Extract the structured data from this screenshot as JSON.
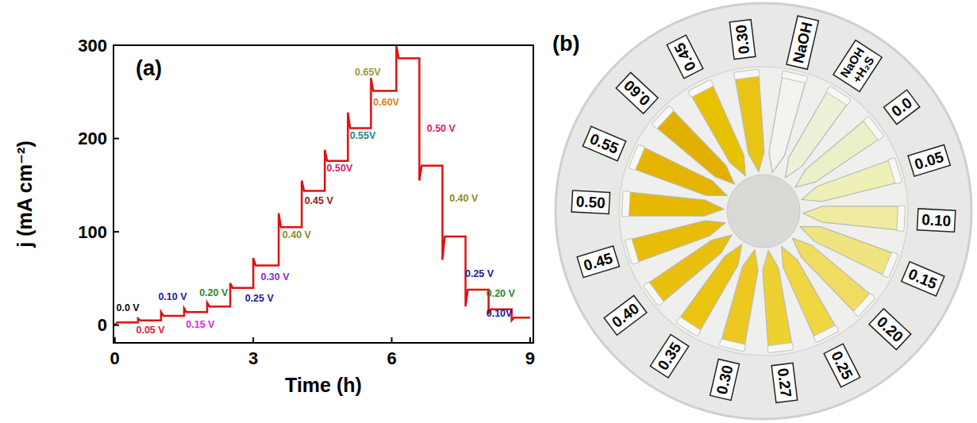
{
  "chart_data": {
    "type": "line",
    "panel_label": "(a)",
    "xlabel": "Time (h)",
    "ylabel": "j (mA cm⁻²)",
    "xlim": [
      -0.03,
      9.07
    ],
    "ylim": [
      -19,
      300
    ],
    "xticks": [
      0,
      3,
      6,
      9
    ],
    "yticks": [
      0,
      100,
      200,
      300
    ],
    "grid": false,
    "series": [
      {
        "color": "#e01010",
        "line_style": "solid",
        "x": [
          0,
          0.05,
          0.5,
          0.5,
          0.55,
          1.0,
          1.0,
          1.05,
          1.5,
          1.5,
          1.55,
          2.0,
          2.0,
          2.05,
          2.5,
          2.5,
          2.55,
          3.0,
          3.0,
          3.05,
          3.55,
          3.55,
          3.6,
          4.05,
          4.05,
          4.1,
          4.55,
          4.55,
          4.6,
          5.05,
          5.05,
          5.1,
          5.55,
          5.55,
          5.6,
          6.1,
          6.1,
          6.15,
          6.6,
          6.6,
          6.65,
          7.1,
          7.1,
          7.15,
          7.6,
          7.6,
          7.65,
          8.1,
          8.1,
          8.15,
          8.6,
          8.6,
          8.65,
          9.0
        ],
        "values": [
          0,
          3,
          3,
          7,
          5,
          5,
          14,
          10,
          10,
          18,
          14,
          14,
          24,
          20,
          20,
          45,
          40,
          40,
          72,
          64,
          64,
          120,
          105,
          105,
          155,
          144,
          144,
          188,
          176,
          176,
          228,
          211,
          211,
          265,
          251,
          251,
          300,
          286,
          286,
          155,
          171,
          171,
          70,
          95,
          95,
          20,
          38,
          38,
          12,
          17,
          17,
          5,
          8,
          8
        ]
      }
    ],
    "annotations": [
      {
        "text": "0.0 V",
        "x": 0.03,
        "y": 15,
        "color": "#111111"
      },
      {
        "text": "0.05 V",
        "x": 0.46,
        "y": -9,
        "color": "#e0203a"
      },
      {
        "text": "0.10 V",
        "x": 0.94,
        "y": 27,
        "color": "#1a1aa0"
      },
      {
        "text": "0.15 V",
        "x": 1.54,
        "y": -3,
        "color": "#e020e0"
      },
      {
        "text": "0.20 V",
        "x": 1.83,
        "y": 31,
        "color": "#2a8a2a"
      },
      {
        "text": "0.25 V",
        "x": 2.82,
        "y": 25,
        "color": "#1a1aa0"
      },
      {
        "text": "0.30 V",
        "x": 3.16,
        "y": 48,
        "color": "#8a2be2"
      },
      {
        "text": "0.40 V",
        "x": 3.63,
        "y": 93,
        "color": "#8a8a20"
      },
      {
        "text": "0.45 V",
        "x": 4.11,
        "y": 130,
        "color": "#8b1a1a"
      },
      {
        "text": "0.50V",
        "x": 4.59,
        "y": 165,
        "color": "#e0206a"
      },
      {
        "text": "0.55V",
        "x": 5.09,
        "y": 200,
        "color": "#1a8a8a"
      },
      {
        "text": "0.60V",
        "x": 5.6,
        "y": 235,
        "color": "#e08020"
      },
      {
        "text": "0.65V",
        "x": 5.2,
        "y": 268,
        "color": "#9a9a30"
      },
      {
        "text": "0.50 V",
        "x": 6.76,
        "y": 207,
        "color": "#e0206a"
      },
      {
        "text": "0.40 V",
        "x": 7.25,
        "y": 132,
        "color": "#8a8a20"
      },
      {
        "text": "0.25 V",
        "x": 7.59,
        "y": 52,
        "color": "#1a1aa0"
      },
      {
        "text": "0.20 V",
        "x": 8.05,
        "y": 30,
        "color": "#2a8a2a"
      },
      {
        "text": "0.10V",
        "x": 8.05,
        "y": 9,
        "color": "#1a1aa0"
      }
    ]
  },
  "vial_tray": {
    "panel_label": "(b)",
    "vials": [
      {
        "label": "0.45",
        "color": "#e8c200"
      },
      {
        "label": "0.30",
        "color": "#e8c414"
      },
      {
        "label": "NaOH",
        "color": "#f4f4ee"
      },
      {
        "label": "NaOH +H₂S",
        "color": "#eef0d8"
      },
      {
        "label": "0.0",
        "color": "#eaf0c8"
      },
      {
        "label": "0.05",
        "color": "#eef0b8"
      },
      {
        "label": "0.10",
        "color": "#eeeaa0"
      },
      {
        "label": "0.15",
        "color": "#efe480"
      },
      {
        "label": "0.20",
        "color": "#f0dc60"
      },
      {
        "label": "0.25",
        "color": "#f0d640"
      },
      {
        "label": "0.27",
        "color": "#eed030"
      },
      {
        "label": "0.30",
        "color": "#ecc820"
      },
      {
        "label": "0.35",
        "color": "#eac410"
      },
      {
        "label": "0.40",
        "color": "#eac010"
      },
      {
        "label": "0.45",
        "color": "#e8bc08"
      },
      {
        "label": "0.50",
        "color": "#e6b800"
      },
      {
        "label": "0.55",
        "color": "#e4b400"
      },
      {
        "label": "0.60",
        "color": "#e2b000"
      }
    ]
  }
}
